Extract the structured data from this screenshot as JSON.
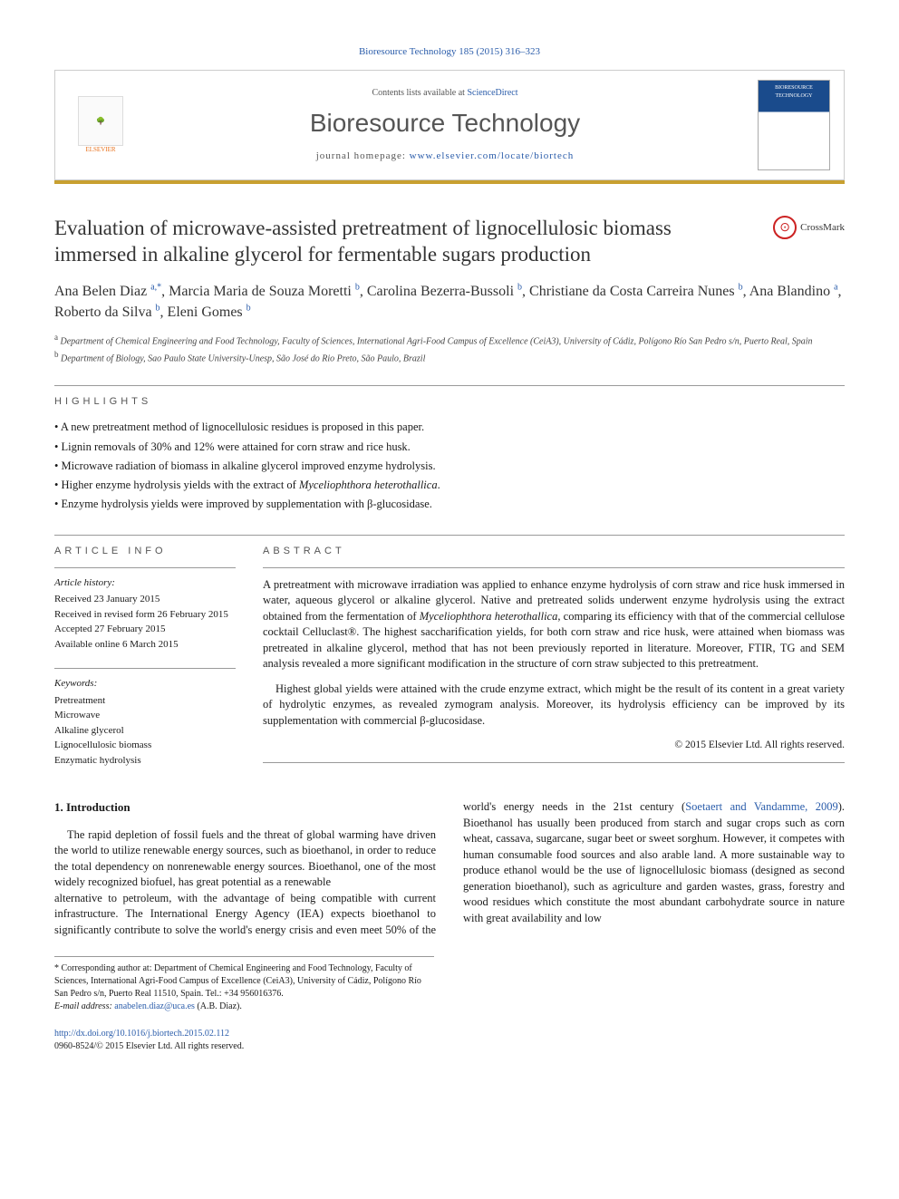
{
  "citation_top": "Bioresource Technology 185 (2015) 316–323",
  "banner": {
    "contents_prefix": "Contents lists available at ",
    "contents_link": "ScienceDirect",
    "journal_name": "Bioresource Technology",
    "homepage_prefix": "journal homepage: ",
    "homepage_url": "www.elsevier.com/locate/biortech",
    "publisher": "ELSEVIER",
    "cover_title": "BIORESOURCE TECHNOLOGY"
  },
  "crossmark_label": "CrossMark",
  "article_title": "Evaluation of microwave-assisted pretreatment of lignocellulosic biomass immersed in alkaline glycerol for fermentable sugars production",
  "authors_html": "Ana Belen Diaz <sup>a,*</sup>, Marcia Maria de Souza Moretti <sup>b</sup>, Carolina Bezerra-Bussoli <sup>b</sup>, Christiane da Costa Carreira Nunes <sup>b</sup>, Ana Blandino <sup>a</sup>, Roberto da Silva <sup>b</sup>, Eleni Gomes <sup>b</sup>",
  "affiliations": [
    {
      "key": "a",
      "text": "Department of Chemical Engineering and Food Technology, Faculty of Sciences, International Agri-Food Campus of Excellence (CeiA3), University of Cádiz, Polígono Río San Pedro s/n, Puerto Real, Spain"
    },
    {
      "key": "b",
      "text": "Department of Biology, Sao Paulo State University-Unesp, São José do Rio Preto, São Paulo, Brazil"
    }
  ],
  "highlights_label": "HIGHLIGHTS",
  "highlights": [
    "A new pretreatment method of lignocellulosic residues is proposed in this paper.",
    "Lignin removals of 30% and 12% were attained for corn straw and rice husk.",
    "Microwave radiation of biomass in alkaline glycerol improved enzyme hydrolysis.",
    "Higher enzyme hydrolysis yields with the extract of Myceliophthora heterothallica.",
    "Enzyme hydrolysis yields were improved by supplementation with β-glucosidase."
  ],
  "article_info_label": "ARTICLE INFO",
  "article_history_label": "Article history:",
  "article_history": [
    "Received 23 January 2015",
    "Received in revised form 26 February 2015",
    "Accepted 27 February 2015",
    "Available online 6 March 2015"
  ],
  "keywords_label": "Keywords:",
  "keywords": [
    "Pretreatment",
    "Microwave",
    "Alkaline glycerol",
    "Lignocellulosic biomass",
    "Enzymatic hydrolysis"
  ],
  "abstract_label": "ABSTRACT",
  "abstract_paragraphs": [
    "A pretreatment with microwave irradiation was applied to enhance enzyme hydrolysis of corn straw and rice husk immersed in water, aqueous glycerol or alkaline glycerol. Native and pretreated solids underwent enzyme hydrolysis using the extract obtained from the fermentation of Myceliophthora heterothallica, comparing its efficiency with that of the commercial cellulose cocktail Celluclast®. The highest saccharification yields, for both corn straw and rice husk, were attained when biomass was pretreated in alkaline glycerol, method that has not been previously reported in literature. Moreover, FTIR, TG and SEM analysis revealed a more significant modification in the structure of corn straw subjected to this pretreatment.",
    "Highest global yields were attained with the crude enzyme extract, which might be the result of its content in a great variety of hydrolytic enzymes, as revealed zymogram analysis. Moreover, its hydrolysis efficiency can be improved by its supplementation with commercial β-glucosidase."
  ],
  "abstract_copyright": "© 2015 Elsevier Ltd. All rights reserved.",
  "intro_heading": "1. Introduction",
  "intro_col1": "The rapid depletion of fossil fuels and the threat of global warming have driven the world to utilize renewable energy sources, such as bioethanol, in order to reduce the total dependency on nonrenewable energy sources. Bioethanol, one of the most widely recognized biofuel, has great potential as a renewable",
  "intro_col2_part1": "alternative to petroleum, with the advantage of being compatible with current infrastructure. The International Energy Agency (IEA) expects bioethanol to significantly contribute to solve the world's energy crisis and even meet 50% of the world's energy needs in the 21st century (",
  "intro_ref": "Soetaert and Vandamme, 2009",
  "intro_col2_part2": "). Bioethanol has usually been produced from starch and sugar crops such as corn wheat, cassava, sugarcane, sugar beet or sweet sorghum. However, it competes with human consumable food sources and also arable land. A more sustainable way to produce ethanol would be the use of lignocellulosic biomass (designed as second generation bioethanol), such as agriculture and garden wastes, grass, forestry and wood residues which constitute the most abundant carbohydrate source in nature with great availability and low",
  "corresponding": {
    "star": "*",
    "label": "Corresponding author at: Department of Chemical Engineering and Food Technology, Faculty of Sciences, International Agri-Food Campus of Excellence (CeiA3), University of Cádiz, Polígono Río San Pedro s/n, Puerto Real 11510, Spain. Tel.: +34 956016376.",
    "email_label": "E-mail address:",
    "email": "anabelen.diaz@uca.es",
    "email_who": "(A.B. Diaz)."
  },
  "doi_line": "http://dx.doi.org/10.1016/j.biortech.2015.02.112",
  "issn_line": "0960-8524/© 2015 Elsevier Ltd. All rights reserved.",
  "colors": {
    "link": "#2a5caa",
    "gold_rule": "#c8a030",
    "orange": "#e8711c",
    "text": "#1a1a1a",
    "grey": "#555555"
  }
}
